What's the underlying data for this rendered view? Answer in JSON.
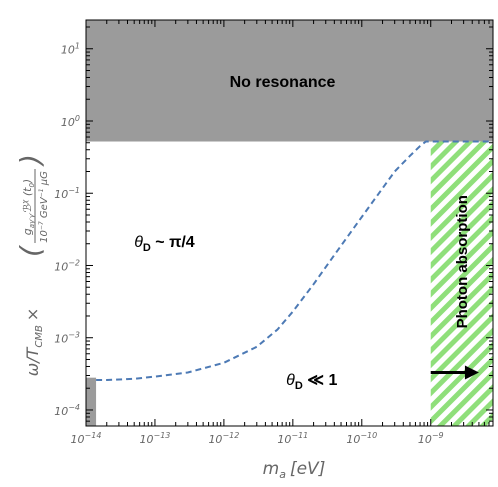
{
  "chart_data": {
    "type": "line",
    "title": "",
    "xlabel": {
      "main": "m",
      "sub": "a",
      "unit": "[eV]"
    },
    "ylabel": {
      "prefix": "ω/T",
      "prefix_sub": "CMB",
      "times": "×",
      "numerator": "g",
      "numerator_sub": "aγ′γ′",
      "numerator_rest": "ℬ",
      "numerator_sup": "χ",
      "numerator_tail": " (t",
      "numerator_tail_sub": "0",
      "numerator_close": ")",
      "denominator": "10",
      "denominator_sup": "−7",
      "denominator_rest": " GeV",
      "denominator_rest_sup": "−1",
      "denominator_end": " μG"
    },
    "xscale": "log",
    "yscale": "log",
    "xlim": [
      1e-14,
      8e-09
    ],
    "ylim": [
      6e-05,
      25
    ],
    "x_ticks": [
      {
        "base": "10",
        "exp": "−14",
        "value": 1e-14
      },
      {
        "base": "10",
        "exp": "−13",
        "value": 1e-13
      },
      {
        "base": "10",
        "exp": "−12",
        "value": 1e-12
      },
      {
        "base": "10",
        "exp": "−11",
        "value": 1e-11
      },
      {
        "base": "10",
        "exp": "−10",
        "value": 1e-10
      },
      {
        "base": "10",
        "exp": "−9",
        "value": 1e-09
      }
    ],
    "y_ticks": [
      {
        "base": "10",
        "exp": "1",
        "value": 10
      },
      {
        "base": "10",
        "exp": "0",
        "value": 1
      },
      {
        "base": "10",
        "exp": "−1",
        "value": 0.1
      },
      {
        "base": "10",
        "exp": "−2",
        "value": 0.01
      },
      {
        "base": "10",
        "exp": "−3",
        "value": 0.001
      },
      {
        "base": "10",
        "exp": "−4",
        "value": 0.0001
      }
    ],
    "series": [
      {
        "style": "dashed",
        "color": "#4d7ab5",
        "x": [
          1.4e-14,
          2e-14,
          5e-14,
          1e-13,
          3e-13,
          1e-12,
          3e-12,
          6e-12,
          1e-11,
          2e-11,
          4e-11,
          8e-11,
          1.5e-10,
          3e-10,
          5e-10,
          7e-10,
          8.5e-10,
          1e-09,
          8e-09
        ],
        "y": [
          0.00026,
          0.00026,
          0.00027,
          0.00029,
          0.00033,
          0.00045,
          0.00075,
          0.0013,
          0.0023,
          0.0055,
          0.014,
          0.035,
          0.08,
          0.2,
          0.33,
          0.45,
          0.52,
          0.52,
          0.52
        ]
      }
    ],
    "regions": [
      {
        "name": "no_resonance",
        "label": "No resonance",
        "color": "#9b9b9b",
        "x_range": [
          1e-14,
          8e-09
        ],
        "y_range": [
          0.52,
          25
        ]
      },
      {
        "name": "small_corner",
        "color": "#9b9b9b",
        "x_range": [
          1e-14,
          1.4e-14
        ],
        "y_range": [
          6e-05,
          0.00028
        ]
      },
      {
        "name": "photon_absorption",
        "label": "Photon absorption",
        "color": "#8fdf7a",
        "pattern": "hatched",
        "x_range": [
          1e-09,
          8e-09
        ],
        "y_range": [
          6e-05,
          0.52
        ]
      }
    ],
    "annotations": {
      "theta_large": {
        "symbol": "θ",
        "sub": "D",
        "text": " ~ π/4",
        "x": 5e-14,
        "y": 0.018
      },
      "theta_small": {
        "symbol": "θ",
        "sub": "D",
        "text": " ≪ 1",
        "x": 8e-12,
        "y": 0.00022
      }
    },
    "arrow": {
      "color": "#000000",
      "direction": "right",
      "x_from": 1e-09,
      "x_to": 5e-09,
      "y": 0.00033
    },
    "grid": false,
    "legend": "none"
  }
}
